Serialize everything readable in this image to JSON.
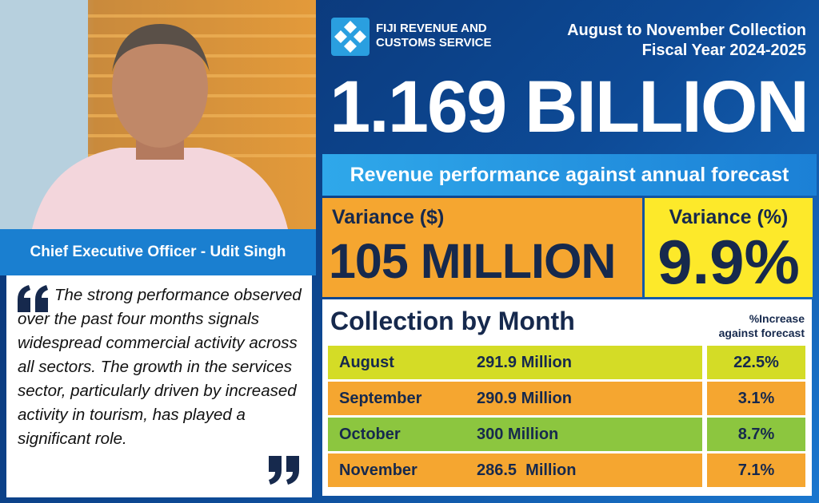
{
  "header": {
    "organization": [
      "FIJI REVENUE AND",
      "CUSTOMS SERVICE"
    ],
    "period": "August to November Collection",
    "fiscal_year": "Fiscal Year 2024-2025"
  },
  "headline": "1.169 BILLION",
  "banner": "Revenue performance against annual forecast",
  "variance": [
    {
      "label": "Variance ($)",
      "value": "105 MILLION"
    },
    {
      "label": "Variance (%)",
      "value": "9.9%"
    }
  ],
  "photo_caption": "Chief Executive Officer - Udit Singh",
  "quote": "The strong performance observed over the past four months signals widespread commercial activity across all sectors. The growth in the services sector, particularly driven by increased activity in tourism, has played a significant role.",
  "table": {
    "title": "Collection by Month",
    "column_header": [
      "%Increase",
      "against forecast"
    ],
    "rows": [
      [
        "August",
        "291.9 Million",
        "22.5%"
      ],
      [
        "September",
        "290.9 Million",
        "3.1%"
      ],
      [
        "October",
        "300 Million",
        "8.7%"
      ],
      [
        "November",
        "286.5  Million",
        "7.1%"
      ]
    ]
  }
}
